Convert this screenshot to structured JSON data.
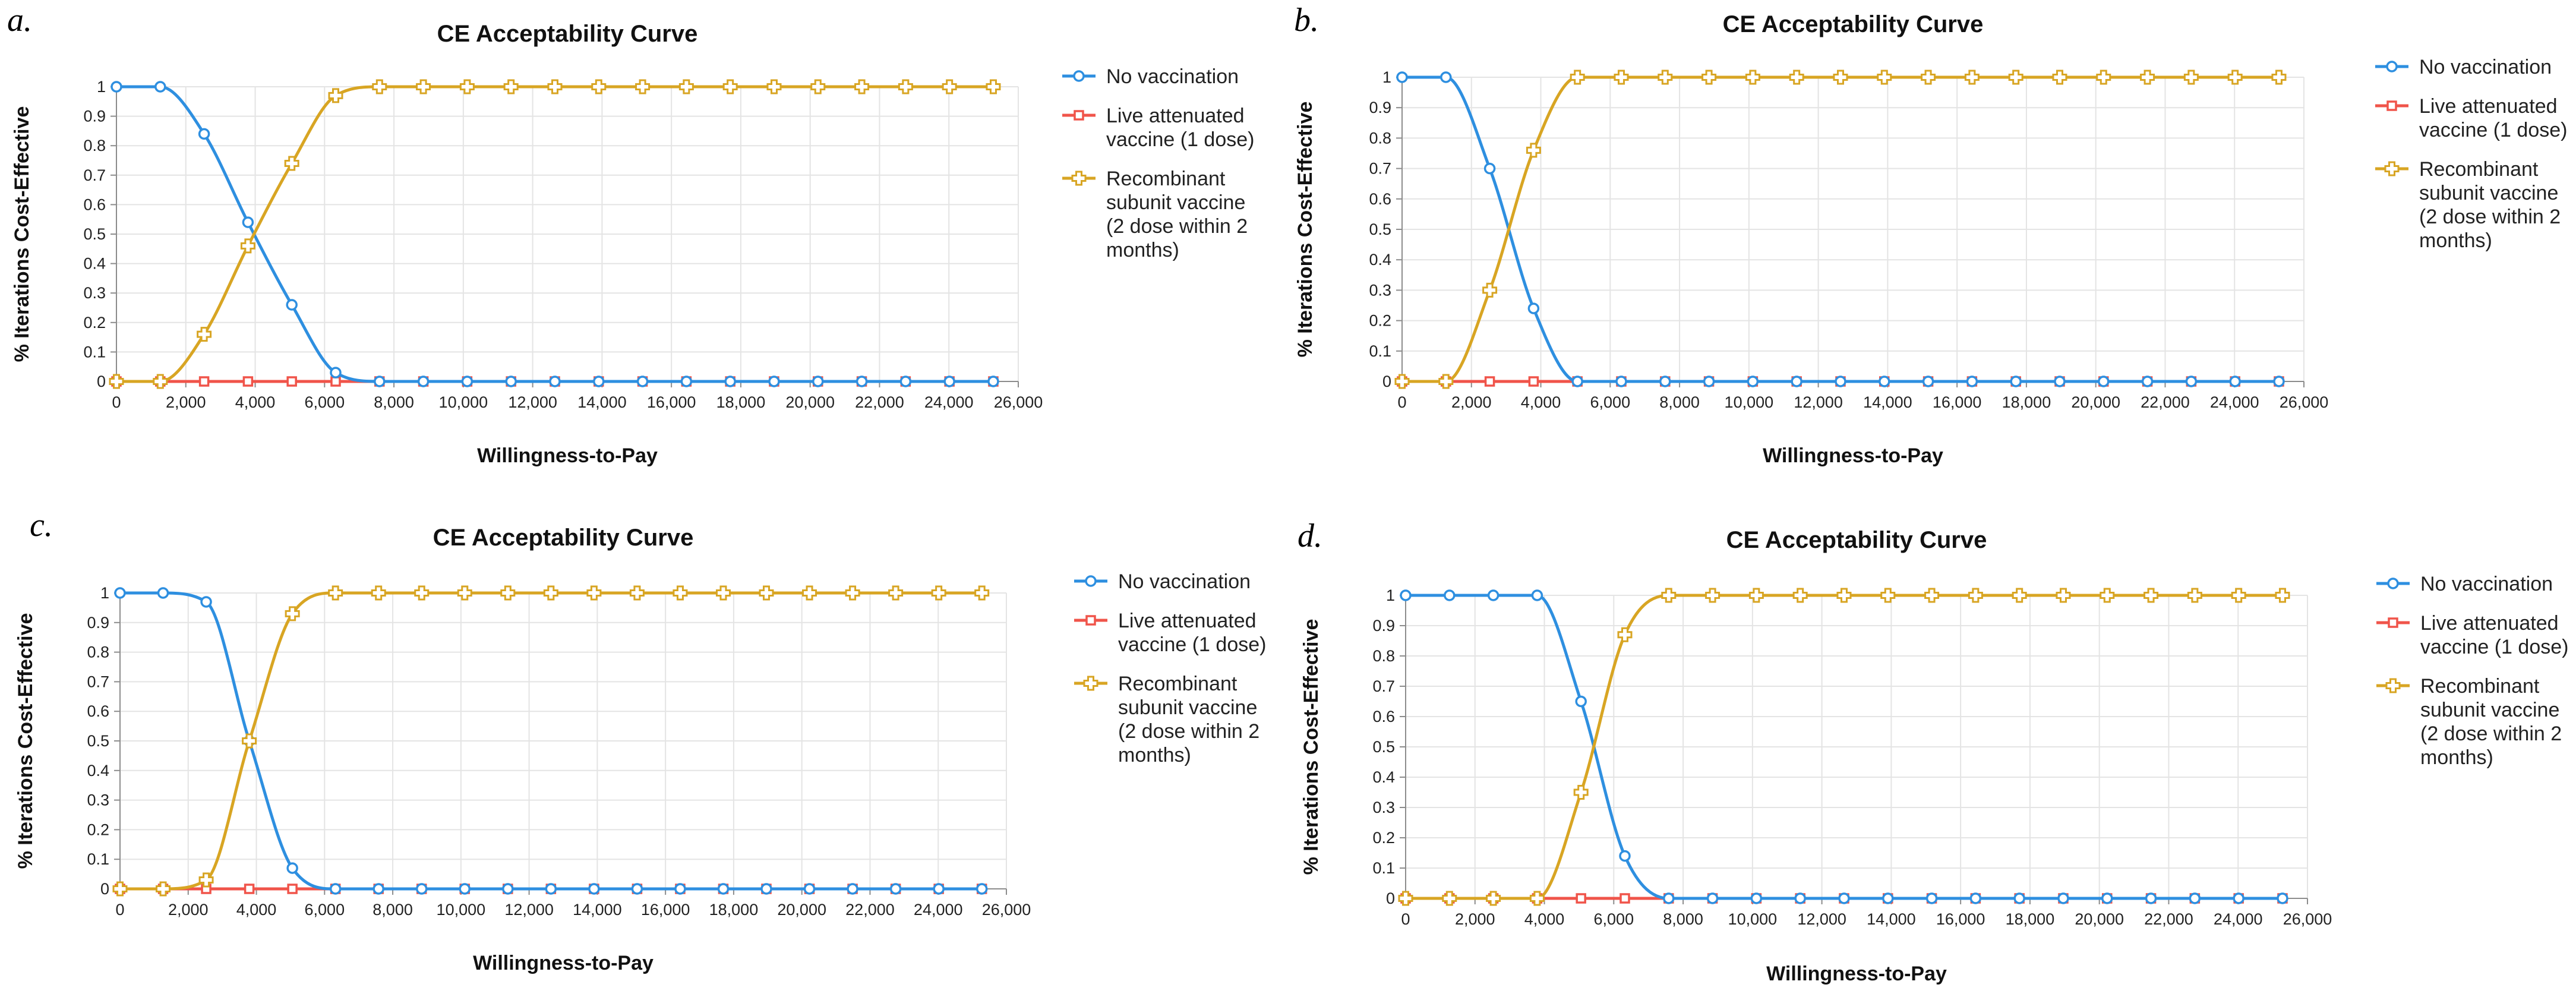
{
  "chart_data": [
    {
      "type": "line",
      "panel": "a.",
      "title": "CE Acceptability Curve",
      "xlabel": "Willingness-to-Pay",
      "ylabel": "% Iterations Cost-Effective",
      "xlim": [
        0,
        26000
      ],
      "ylim": [
        0,
        1
      ],
      "xticks": [
        "0",
        "2,000",
        "4,000",
        "6,000",
        "8,000",
        "10,000",
        "12,000",
        "14,000",
        "16,000",
        "18,000",
        "20,000",
        "22,000",
        "24,000",
        "26,000"
      ],
      "yticks": [
        "0",
        "0.1",
        "0.2",
        "0.3",
        "0.4",
        "0.5",
        "0.6",
        "0.7",
        "0.8",
        "0.9",
        "1"
      ],
      "grid": true,
      "legend_position": "right",
      "x": [
        0,
        1264,
        2528,
        3792,
        5056,
        6320,
        7584,
        8848,
        10112,
        11376,
        12640,
        13904,
        15168,
        16432,
        17696,
        18960,
        20224,
        21488,
        22752,
        24016,
        25280
      ],
      "series": [
        {
          "name": "No vaccination",
          "color": "#2e8fe0",
          "marker": "circle",
          "values": [
            1,
            1,
            0.84,
            0.54,
            0.26,
            0.03,
            0,
            0,
            0,
            0,
            0,
            0,
            0,
            0,
            0,
            0,
            0,
            0,
            0,
            0,
            0
          ]
        },
        {
          "name": "Live attenuated vaccine (1 dose)",
          "color": "#f0544a",
          "marker": "square",
          "values": [
            0,
            0,
            0,
            0,
            0,
            0,
            0,
            0,
            0,
            0,
            0,
            0,
            0,
            0,
            0,
            0,
            0,
            0,
            0,
            0,
            0
          ]
        },
        {
          "name": "Recombinant subunit vaccine (2 dose within 2 months)",
          "color": "#d8a523",
          "marker": "cross",
          "values": [
            0,
            0,
            0.16,
            0.46,
            0.74,
            0.97,
            1,
            1,
            1,
            1,
            1,
            1,
            1,
            1,
            1,
            1,
            1,
            1,
            1,
            1,
            1
          ]
        }
      ]
    },
    {
      "type": "line",
      "panel": "b.",
      "title": "CE Acceptability Curve",
      "xlabel": "Willingness-to-Pay",
      "ylabel": "% Iterations Cost-Effective",
      "xlim": [
        0,
        26000
      ],
      "ylim": [
        0,
        1
      ],
      "xticks": [
        "0",
        "2,000",
        "4,000",
        "6,000",
        "8,000",
        "10,000",
        "12,000",
        "14,000",
        "16,000",
        "18,000",
        "20,000",
        "22,000",
        "24,000",
        "26,000"
      ],
      "yticks": [
        "0",
        "0.1",
        "0.2",
        "0.3",
        "0.4",
        "0.5",
        "0.6",
        "0.7",
        "0.8",
        "0.9",
        "1"
      ],
      "grid": true,
      "legend_position": "right",
      "x": [
        0,
        1264,
        2528,
        3792,
        5056,
        6320,
        7584,
        8848,
        10112,
        11376,
        12640,
        13904,
        15168,
        16432,
        17696,
        18960,
        20224,
        21488,
        22752,
        24016,
        25280
      ],
      "series": [
        {
          "name": "No vaccination",
          "color": "#2e8fe0",
          "marker": "circle",
          "values": [
            1,
            1,
            0.7,
            0.24,
            0,
            0,
            0,
            0,
            0,
            0,
            0,
            0,
            0,
            0,
            0,
            0,
            0,
            0,
            0,
            0,
            0
          ]
        },
        {
          "name": "Live attenuated vaccine (1 dose)",
          "color": "#f0544a",
          "marker": "square",
          "values": [
            0,
            0,
            0,
            0,
            0,
            0,
            0,
            0,
            0,
            0,
            0,
            0,
            0,
            0,
            0,
            0,
            0,
            0,
            0,
            0,
            0
          ]
        },
        {
          "name": "Recombinant subunit vaccine (2 dose within 2 months)",
          "color": "#d8a523",
          "marker": "cross",
          "values": [
            0,
            0,
            0.3,
            0.76,
            1,
            1,
            1,
            1,
            1,
            1,
            1,
            1,
            1,
            1,
            1,
            1,
            1,
            1,
            1,
            1,
            1
          ]
        }
      ]
    },
    {
      "type": "line",
      "panel": "c.",
      "title": "CE Acceptability Curve",
      "xlabel": "Willingness-to-Pay",
      "ylabel": "% Iterations Cost-Effective",
      "xlim": [
        0,
        26000
      ],
      "ylim": [
        0,
        1
      ],
      "xticks": [
        "0",
        "2,000",
        "4,000",
        "6,000",
        "8,000",
        "10,000",
        "12,000",
        "14,000",
        "16,000",
        "18,000",
        "20,000",
        "22,000",
        "24,000",
        "26,000"
      ],
      "yticks": [
        "0",
        "0.1",
        "0.2",
        "0.3",
        "0.4",
        "0.5",
        "0.6",
        "0.7",
        "0.8",
        "0.9",
        "1"
      ],
      "grid": true,
      "legend_position": "right",
      "x": [
        0,
        1264,
        2528,
        3792,
        5056,
        6320,
        7584,
        8848,
        10112,
        11376,
        12640,
        13904,
        15168,
        16432,
        17696,
        18960,
        20224,
        21488,
        22752,
        24016,
        25280
      ],
      "series": [
        {
          "name": "No vaccination",
          "color": "#2e8fe0",
          "marker": "circle",
          "values": [
            1,
            1,
            0.97,
            0.5,
            0.07,
            0,
            0,
            0,
            0,
            0,
            0,
            0,
            0,
            0,
            0,
            0,
            0,
            0,
            0,
            0,
            0
          ]
        },
        {
          "name": "Live attenuated vaccine (1 dose)",
          "color": "#f0544a",
          "marker": "square",
          "values": [
            0,
            0,
            0,
            0,
            0,
            0,
            0,
            0,
            0,
            0,
            0,
            0,
            0,
            0,
            0,
            0,
            0,
            0,
            0,
            0,
            0
          ]
        },
        {
          "name": "Recombinant subunit vaccine (2 dose within 2 months)",
          "color": "#d8a523",
          "marker": "cross",
          "values": [
            0,
            0,
            0.03,
            0.5,
            0.93,
            1,
            1,
            1,
            1,
            1,
            1,
            1,
            1,
            1,
            1,
            1,
            1,
            1,
            1,
            1,
            1
          ]
        }
      ]
    },
    {
      "type": "line",
      "panel": "d.",
      "title": "CE Acceptability Curve",
      "xlabel": "Willingness-to-Pay",
      "ylabel": "% Iterations Cost-Effective",
      "xlim": [
        0,
        26000
      ],
      "ylim": [
        0,
        1
      ],
      "xticks": [
        "0",
        "2,000",
        "4,000",
        "6,000",
        "8,000",
        "10,000",
        "12,000",
        "14,000",
        "16,000",
        "18,000",
        "20,000",
        "22,000",
        "24,000",
        "26,000"
      ],
      "yticks": [
        "0",
        "0.1",
        "0.2",
        "0.3",
        "0.4",
        "0.5",
        "0.6",
        "0.7",
        "0.8",
        "0.9",
        "1"
      ],
      "grid": true,
      "legend_position": "right",
      "x": [
        0,
        1264,
        2528,
        3792,
        5056,
        6320,
        7584,
        8848,
        10112,
        11376,
        12640,
        13904,
        15168,
        16432,
        17696,
        18960,
        20224,
        21488,
        22752,
        24016,
        25280
      ],
      "series": [
        {
          "name": "No vaccination",
          "color": "#2e8fe0",
          "marker": "circle",
          "values": [
            1,
            1,
            1,
            1,
            0.65,
            0.14,
            0,
            0,
            0,
            0,
            0,
            0,
            0,
            0,
            0,
            0,
            0,
            0,
            0,
            0,
            0
          ]
        },
        {
          "name": "Live attenuated vaccine (1 dose)",
          "color": "#f0544a",
          "marker": "square",
          "values": [
            0,
            0,
            0,
            0,
            0,
            0,
            0,
            0,
            0,
            0,
            0,
            0,
            0,
            0,
            0,
            0,
            0,
            0,
            0,
            0,
            0
          ]
        },
        {
          "name": "Recombinant subunit vaccine (2 dose within 2 months)",
          "color": "#d8a523",
          "marker": "cross",
          "values": [
            0,
            0,
            0,
            0,
            0.35,
            0.87,
            1,
            1,
            1,
            1,
            1,
            1,
            1,
            1,
            1,
            1,
            1,
            1,
            1,
            1,
            1
          ]
        }
      ]
    }
  ],
  "legend_lines": [
    [
      "No vaccination"
    ],
    [
      "Live attenuated",
      "vaccine (1 dose)"
    ],
    [
      "Recombinant",
      "subunit vaccine",
      "(2 dose within 2",
      "months)"
    ]
  ]
}
